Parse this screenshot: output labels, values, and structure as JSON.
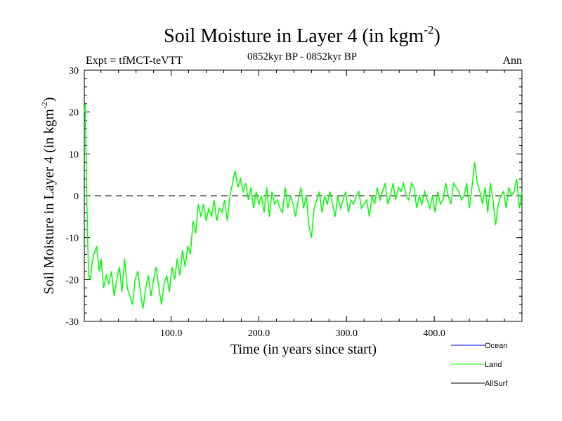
{
  "chart_data": {
    "type": "line",
    "title": "Soil Moisture in Layer 4 (in kgm",
    "title_sup": "-2",
    "title_close": ")",
    "subtitle_left": "Expt = tfMCT-teVTT",
    "subtitle_center": "0852kyr BP - 0852kyr BP",
    "subtitle_right": "Ann",
    "xlabel": "Time (in years since start)",
    "ylabel": "Soil Moisture in Layer 4 (in kgm",
    "ylabel_sup": "-2",
    "ylabel_close": ")",
    "xlim": [
      1,
      500
    ],
    "ylim": [
      -30,
      30
    ],
    "x_ticks": [
      {
        "value": 100,
        "label": "100.0"
      },
      {
        "value": 200,
        "label": "200.0"
      },
      {
        "value": 300,
        "label": "300.0"
      },
      {
        "value": 400,
        "label": "400.0"
      }
    ],
    "y_ticks": [
      {
        "value": 30,
        "label": "30"
      },
      {
        "value": 20,
        "label": "20"
      },
      {
        "value": 10,
        "label": "10"
      },
      {
        "value": 0,
        "label": "0"
      },
      {
        "value": -10,
        "label": "-10"
      },
      {
        "value": -20,
        "label": "-20"
      },
      {
        "value": -30,
        "label": "-30"
      }
    ],
    "zero_line": 0,
    "legend": [
      {
        "name": "Ocean",
        "color": "#0000ff"
      },
      {
        "name": "Land",
        "color": "#00ff00"
      },
      {
        "name": "AllSurf",
        "color": "#000000"
      }
    ],
    "series": [
      {
        "name": "Land",
        "color": "#00ff00",
        "x": [
          1,
          2,
          3,
          4,
          5,
          6,
          8,
          10,
          12,
          15,
          18,
          20,
          23,
          26,
          29,
          32,
          35,
          38,
          41,
          44,
          47,
          50,
          53,
          56,
          59,
          62,
          65,
          68,
          71,
          74,
          77,
          80,
          83,
          86,
          89,
          92,
          95,
          98,
          101,
          104,
          107,
          110,
          113,
          116,
          119,
          122,
          125,
          128,
          131,
          134,
          137,
          140,
          143,
          146,
          149,
          152,
          155,
          158,
          161,
          164,
          167,
          170,
          173,
          176,
          179,
          182,
          185,
          188,
          191,
          194,
          197,
          200,
          203,
          206,
          209,
          212,
          215,
          218,
          221,
          224,
          227,
          230,
          233,
          236,
          239,
          242,
          245,
          248,
          251,
          254,
          257,
          260,
          263,
          266,
          269,
          272,
          275,
          278,
          281,
          284,
          287,
          290,
          293,
          296,
          299,
          302,
          305,
          308,
          311,
          314,
          317,
          320,
          323,
          326,
          329,
          332,
          335,
          338,
          341,
          344,
          347,
          350,
          353,
          356,
          359,
          362,
          365,
          368,
          371,
          374,
          377,
          380,
          383,
          386,
          389,
          392,
          395,
          398,
          401,
          404,
          407,
          410,
          413,
          416,
          419,
          422,
          425,
          428,
          431,
          434,
          437,
          440,
          443,
          446,
          449,
          452,
          455,
          458,
          461,
          464,
          467,
          470,
          473,
          476,
          479,
          482,
          485,
          488,
          491,
          494,
          497,
          500
        ],
        "values": [
          20,
          22,
          10,
          -2,
          -12,
          -19,
          -20,
          -16,
          -14,
          -12,
          -18,
          -15,
          -22,
          -19,
          -21,
          -18,
          -24,
          -20,
          -17,
          -23,
          -15,
          -22,
          -24,
          -26,
          -20,
          -18,
          -23,
          -27,
          -22,
          -19,
          -24,
          -20,
          -17,
          -22,
          -26,
          -21,
          -19,
          -23,
          -17,
          -20,
          -15,
          -19,
          -13,
          -17,
          -12,
          -14,
          -6,
          -9,
          -2,
          -5,
          -2,
          -6,
          -3,
          -5,
          -1,
          -6,
          -3,
          -4,
          -1,
          -6,
          0,
          3,
          6,
          2,
          4,
          1,
          3,
          -1,
          2,
          -3,
          1,
          -2,
          0,
          -4,
          2,
          -5,
          1,
          -2,
          -1,
          -3,
          -4,
          2,
          -3,
          0,
          -2,
          -5,
          -1,
          2,
          -3,
          0,
          -7,
          -10,
          -3,
          -1,
          1,
          -4,
          0,
          -2,
          1,
          -2,
          -5,
          0,
          -3,
          -1,
          1,
          -4,
          -1,
          -2,
          0,
          1,
          -3,
          -2,
          -1,
          -5,
          0,
          -2,
          2,
          -1,
          1,
          3,
          -2,
          0,
          3,
          -1,
          2,
          1,
          3,
          0,
          -1,
          3,
          2,
          -3,
          0,
          -2,
          1,
          -1,
          -3,
          0,
          -4,
          1,
          -2,
          -1,
          3,
          0,
          -2,
          3,
          2,
          1,
          -1,
          0,
          3,
          -3,
          2,
          8,
          3,
          1,
          -2,
          2,
          -4,
          3,
          -1,
          -7,
          -2,
          0,
          1,
          -3,
          2,
          0,
          1,
          4,
          -3,
          1
        ]
      }
    ]
  }
}
